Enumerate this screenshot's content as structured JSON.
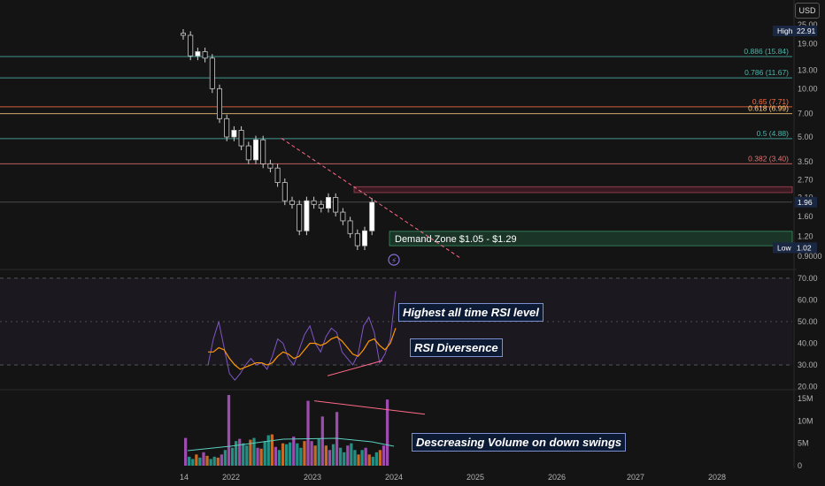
{
  "currency_label": "USD",
  "colors": {
    "background": "#141414",
    "candle_up": "#ffffff",
    "candle_down": "#c8c8c8",
    "rsi_line": "#7e57c2",
    "rsi_ma": "#ff9800",
    "volume_orange": "#e8782a",
    "volume_teal": "#26a69a",
    "volume_purple": "#b456c8",
    "trendline": "#ff6b8a",
    "demand_zone": "#1b3a2b"
  },
  "chart_data": [
    {
      "type": "candlestick",
      "title": "",
      "y_scale": "log",
      "price_axis_ticks": [
        "25.00",
        "19.00",
        "13.00",
        "10.00",
        "7.00",
        "5.00",
        "3.50",
        "2.70",
        "2.10",
        "1.60",
        "1.20",
        "0.9000"
      ],
      "x_axis_ticks": [
        "14",
        "2022",
        "2023",
        "2024",
        "2025",
        "2026",
        "2027",
        "2028"
      ],
      "ylim": [
        0.88,
        27
      ],
      "approx_close": [
        [
          "2021-11",
          21.5
        ],
        [
          "2021-12",
          16
        ],
        [
          "2022-01",
          17
        ],
        [
          "2022-02",
          15.5
        ],
        [
          "2022-03",
          10
        ],
        [
          "2022-04",
          6.5
        ],
        [
          "2022-05",
          5
        ],
        [
          "2022-06",
          5.5
        ],
        [
          "2022-07",
          4.4
        ],
        [
          "2022-08",
          3.6
        ],
        [
          "2022-09",
          4.8
        ],
        [
          "2022-10",
          3.4
        ],
        [
          "2022-11",
          3.2
        ],
        [
          "2022-12",
          2.6
        ],
        [
          "2023-01",
          2.0
        ],
        [
          "2023-02",
          1.9
        ],
        [
          "2023-03",
          1.3
        ],
        [
          "2023-04",
          2.0
        ],
        [
          "2023-05",
          1.9
        ],
        [
          "2023-06",
          1.8
        ],
        [
          "2023-07",
          2.1
        ],
        [
          "2023-08",
          1.7
        ],
        [
          "2023-09",
          1.5
        ],
        [
          "2023-10",
          1.25
        ],
        [
          "2023-11",
          1.05
        ],
        [
          "2023-12",
          1.3
        ],
        [
          "2024-01",
          1.96
        ]
      ],
      "fib_levels": [
        {
          "label": "0.886 (15.84)",
          "value": 15.84,
          "color": "#4db6ac"
        },
        {
          "label": "0.786 (11.67)",
          "value": 11.67,
          "color": "#4db6ac"
        },
        {
          "label": "0.65 (7.71)",
          "value": 7.71,
          "color": "#ff7043"
        },
        {
          "label": "0.618 (6.99)",
          "value": 6.99,
          "color": "#ffcc80"
        },
        {
          "label": "0.5 (4.88)",
          "value": 4.88,
          "color": "#4db6ac"
        },
        {
          "label": "0.382 (3.40)",
          "value": 3.4,
          "color": "#e57373"
        }
      ],
      "high_label": {
        "text": "High",
        "value": "22.91"
      },
      "low_label": {
        "text": "Low",
        "value": "1.02"
      },
      "last_price": "1.96",
      "demand_zone": {
        "text": "Demand Zone $1.05 - $1.29",
        "low": 1.05,
        "high": 1.29
      }
    },
    {
      "type": "line",
      "title": "",
      "y_ticks": [
        "70.00",
        "60.00",
        "50.00",
        "40.00",
        "30.00",
        "20.00"
      ],
      "ylim": [
        19,
        72
      ],
      "bands": [
        30,
        70
      ],
      "midline": 50,
      "series": [
        {
          "values": [
            30,
            42,
            50,
            38,
            26,
            23,
            26,
            30,
            33,
            30,
            31,
            28,
            34,
            42,
            40,
            33,
            30,
            37,
            44,
            48,
            40,
            36,
            43,
            47,
            45,
            36,
            33,
            30,
            35,
            48,
            52,
            45,
            31,
            35,
            42,
            64
          ]
        },
        {
          "values": [
            36,
            36,
            38,
            37,
            33,
            30,
            28,
            29,
            30,
            31,
            31,
            30,
            31,
            34,
            36,
            35,
            33,
            34,
            37,
            40,
            40,
            39,
            40,
            42,
            43,
            41,
            38,
            35,
            34,
            37,
            41,
            42,
            39,
            37,
            40,
            47
          ]
        }
      ]
    },
    {
      "type": "bar",
      "title": "",
      "y_ticks": [
        "15M",
        "10M",
        "5M",
        "0"
      ],
      "ylim": [
        0,
        16
      ],
      "values": [
        6.2,
        2.0,
        1.5,
        2.5,
        1.8,
        3.0,
        2.2,
        1.5,
        2.0,
        1.8,
        2.5,
        3.5,
        15.8,
        4.0,
        5.5,
        6.0,
        5.0,
        4.5,
        5.8,
        6.2,
        4.0,
        3.8,
        5.5,
        6.8,
        7.0,
        4.2,
        3.5,
        5.0,
        4.8,
        5.2,
        6.5,
        5.0,
        4.0,
        5.5,
        14.5,
        5.5,
        4.5,
        6.0,
        11.0,
        4.5,
        3.5,
        4.8,
        12.0,
        4.0,
        3.0,
        4.5,
        5.0,
        3.5,
        2.5,
        3.5,
        4.0,
        2.5,
        2.0,
        3.0,
        3.5,
        4.5,
        14.8
      ]
    }
  ],
  "annotations": {
    "rsi_high": "Highest all time RSI level",
    "rsi_divergence": "RSI Diversence",
    "volume_note": "Descreasing Volume on down swings"
  }
}
